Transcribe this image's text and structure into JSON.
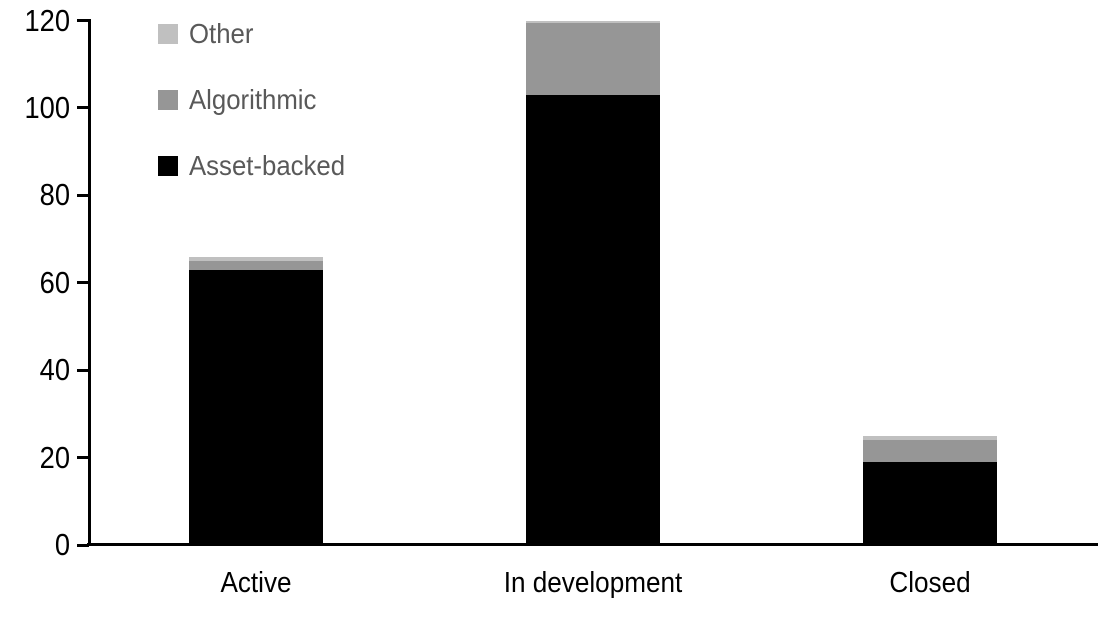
{
  "chart_data": {
    "type": "bar",
    "stacked": true,
    "title": "",
    "categories": [
      "Active",
      "In development",
      "Closed"
    ],
    "series": [
      {
        "name": "Asset-backed",
        "color": "#000000",
        "values": [
          63,
          103,
          19
        ]
      },
      {
        "name": "Algorithmic",
        "color": "#969696",
        "values": [
          2,
          16.5,
          5
        ]
      },
      {
        "name": "Other",
        "color": "#c0c0c0",
        "values": [
          1,
          0.5,
          1
        ]
      }
    ],
    "totals": [
      66,
      120,
      25
    ],
    "xlabel": "",
    "ylabel": "",
    "ylim": [
      0,
      120
    ],
    "yticks": [
      0,
      20,
      40,
      60,
      80,
      100,
      120
    ],
    "grid": false,
    "legend": {
      "position": "top-left",
      "entries": [
        "Other",
        "Algorithmic",
        "Asset-backed"
      ],
      "text_color": "#595959"
    },
    "axis_color": "#000000",
    "background_color": "#ffffff"
  }
}
